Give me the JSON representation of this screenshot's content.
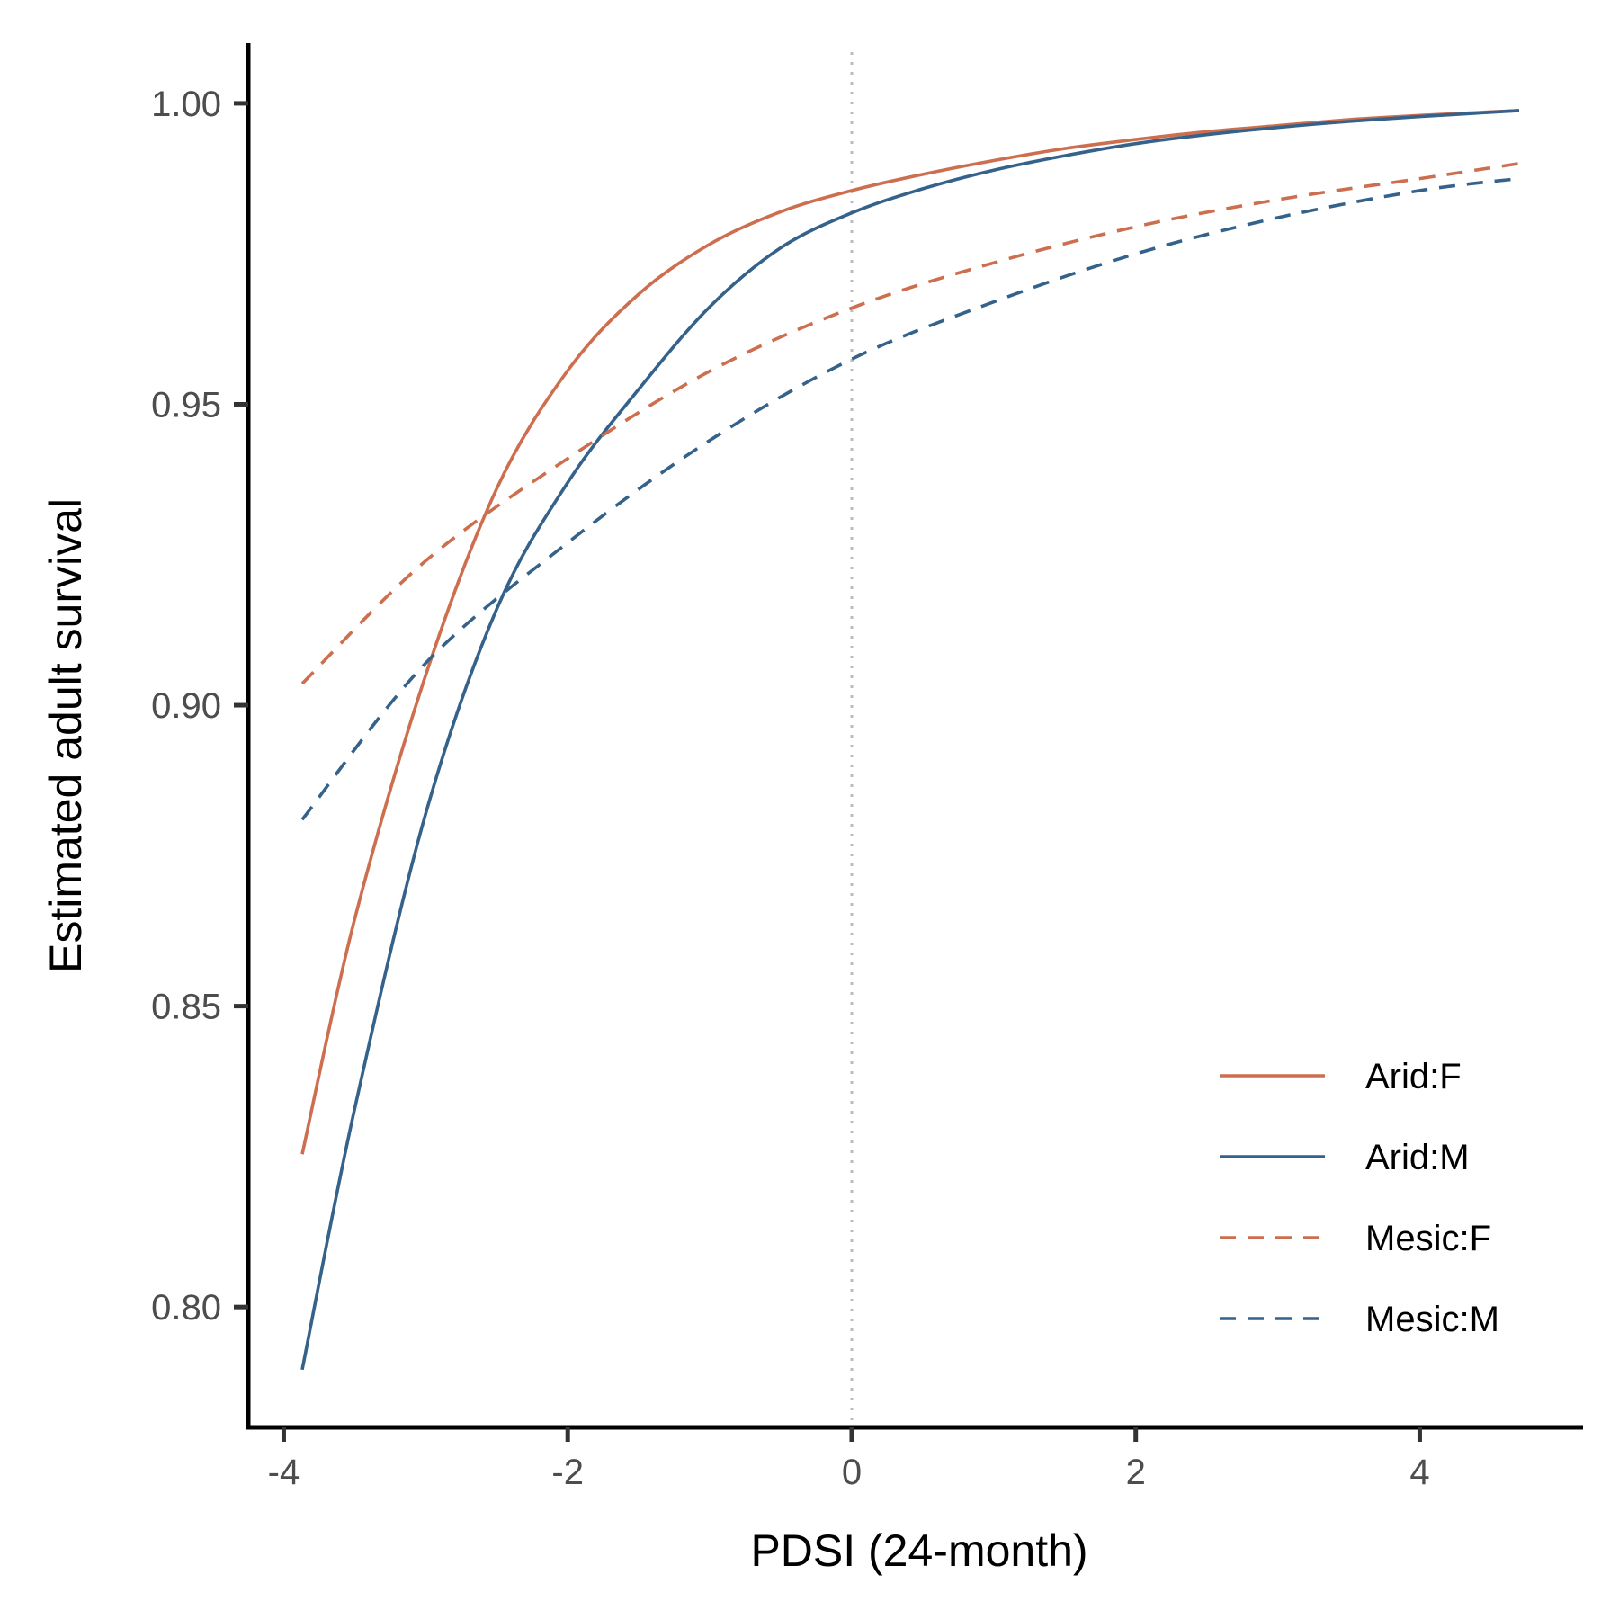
{
  "chart_data": {
    "type": "line",
    "xlabel": "PDSI (24-month)",
    "ylabel": "Estimated adult survival",
    "xlim": [
      -4.25,
      5.15
    ],
    "ylim": [
      0.78,
      1.01
    ],
    "x_ticks": [
      -4,
      -2,
      0,
      2,
      4
    ],
    "x_tick_labels": [
      "-4",
      "-2",
      "0",
      "2",
      "4"
    ],
    "y_ticks": [
      0.8,
      0.85,
      0.9,
      0.95,
      1.0
    ],
    "y_tick_labels": [
      "0.80",
      "0.85",
      "0.90",
      "0.95",
      "1.00"
    ],
    "reference_line": {
      "x": 0,
      "style": "dotted",
      "color": "#bdbdbd"
    },
    "grid": false,
    "legend_position": "bottom-right",
    "series": [
      {
        "name": "Arid:F",
        "color": "#cd6e4f",
        "dash": "solid",
        "x": [
          -3.87,
          -3.5,
          -3.0,
          -2.5,
          -2.0,
          -1.5,
          -1.0,
          -0.5,
          0,
          0.5,
          1.0,
          1.5,
          2.0,
          2.5,
          3.0,
          3.5,
          4.0,
          4.7
        ],
        "values": [
          0.8254,
          0.8645,
          0.905,
          0.936,
          0.9556,
          0.9683,
          0.9766,
          0.982,
          0.9855,
          0.9882,
          0.9905,
          0.9925,
          0.994,
          0.9953,
          0.9963,
          0.9973,
          0.998,
          0.9988
        ]
      },
      {
        "name": "Arid:M",
        "color": "#35628a",
        "dash": "solid",
        "x": [
          -3.87,
          -3.5,
          -3.0,
          -2.5,
          -2.0,
          -1.5,
          -1.0,
          -0.5,
          0,
          0.5,
          1.0,
          1.5,
          2.0,
          2.5,
          3.0,
          3.5,
          4.0,
          4.7
        ],
        "values": [
          0.7896,
          0.833,
          0.882,
          0.916,
          0.937,
          0.9525,
          0.9662,
          0.976,
          0.9818,
          0.9858,
          0.9889,
          0.9913,
          0.9933,
          0.9948,
          0.996,
          0.997,
          0.9978,
          0.9988
        ]
      },
      {
        "name": "Mesic:F",
        "color": "#cd6e4f",
        "dash": "dashed",
        "x": [
          -3.87,
          -3.0,
          -2.0,
          -1.0,
          0,
          1.0,
          2.0,
          3.0,
          4.0,
          4.7
        ],
        "values": [
          0.9036,
          0.924,
          0.941,
          0.9555,
          0.966,
          0.9735,
          0.9795,
          0.984,
          0.9875,
          0.99
        ]
      },
      {
        "name": "Mesic:M",
        "color": "#35628a",
        "dash": "dashed",
        "x": [
          -3.87,
          -3.0,
          -2.0,
          -1.0,
          0,
          1.0,
          2.0,
          3.0,
          4.0,
          4.7
        ],
        "values": [
          0.881,
          0.907,
          0.927,
          0.944,
          0.9575,
          0.967,
          0.975,
          0.981,
          0.9855,
          0.9875
        ]
      }
    ]
  }
}
